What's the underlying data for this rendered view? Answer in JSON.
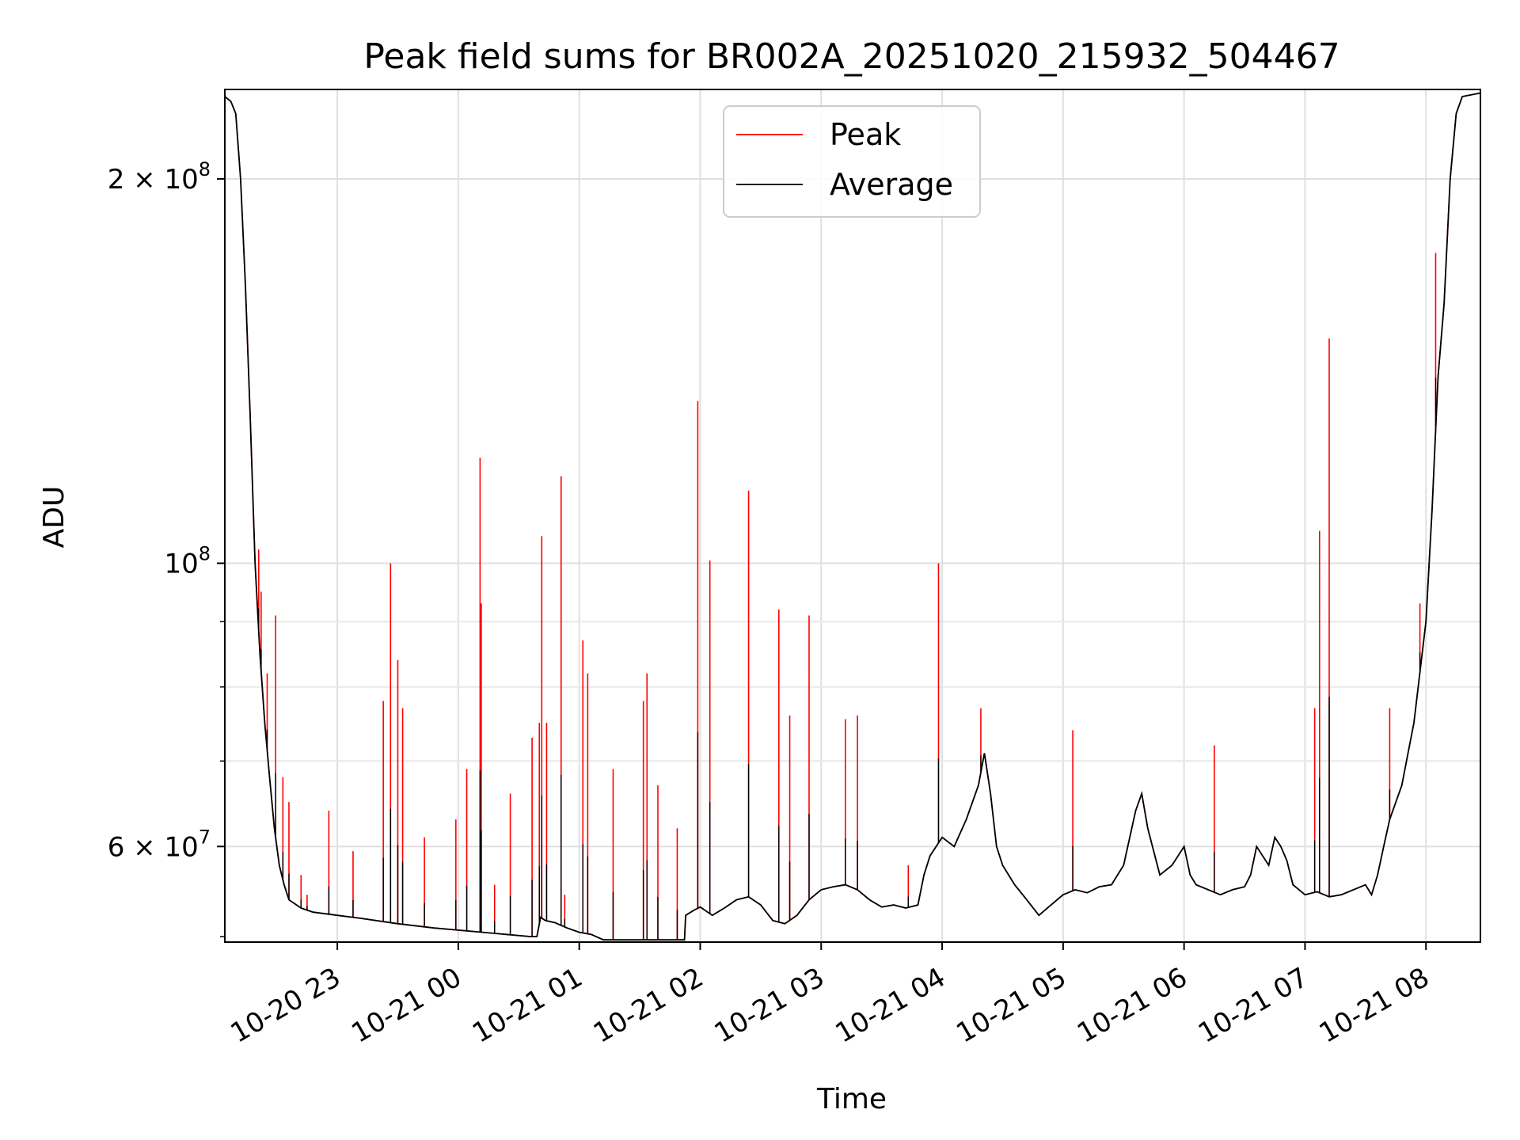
{
  "chart_data": {
    "type": "line",
    "title": "Peak field sums for BR002A_20251020_215932_504467",
    "xlabel": "Time",
    "ylabel": "ADU",
    "yscale": "log",
    "ylim": [
      50500000,
      235000000
    ],
    "xlim_hours": [
      -1.93,
      8.45
    ],
    "x_unit": "hours relative to 2025-10-21 00:00",
    "grid": true,
    "legend_position": "top-center",
    "x_ticks": [
      {
        "value": -1,
        "label": "10-20 23"
      },
      {
        "value": 0,
        "label": "10-21 00"
      },
      {
        "value": 1,
        "label": "10-21 01"
      },
      {
        "value": 2,
        "label": "10-21 02"
      },
      {
        "value": 3,
        "label": "10-21 03"
      },
      {
        "value": 4,
        "label": "10-21 04"
      },
      {
        "value": 5,
        "label": "10-21 05"
      },
      {
        "value": 6,
        "label": "10-21 06"
      },
      {
        "value": 7,
        "label": "10-21 07"
      },
      {
        "value": 8,
        "label": "10-21 08"
      }
    ],
    "y_major_ticks": [
      {
        "value": 60000000,
        "mantissa": "6",
        "exponent": "7"
      },
      {
        "value": 100000000,
        "mantissa": "",
        "exponent": "8"
      },
      {
        "value": 200000000,
        "mantissa": "2",
        "exponent": "8"
      }
    ],
    "y_minor_ticks": [
      70000000,
      80000000,
      90000000
    ],
    "series": [
      {
        "name": "Average",
        "color": "#000000",
        "points": [
          [
            -1.93,
            232000000
          ],
          [
            -1.88,
            230000000
          ],
          [
            -1.84,
            225000000
          ],
          [
            -1.8,
            200000000
          ],
          [
            -1.76,
            165000000
          ],
          [
            -1.72,
            130000000
          ],
          [
            -1.68,
            100000000
          ],
          [
            -1.64,
            85000000
          ],
          [
            -1.6,
            75000000
          ],
          [
            -1.56,
            68000000
          ],
          [
            -1.52,
            62000000
          ],
          [
            -1.48,
            58000000
          ],
          [
            -1.44,
            56000000
          ],
          [
            -1.4,
            54500000
          ],
          [
            -1.3,
            53700000
          ],
          [
            -1.2,
            53300000
          ],
          [
            -1.0,
            53000000
          ],
          [
            -0.8,
            52700000
          ],
          [
            -0.5,
            52200000
          ],
          [
            -0.2,
            51800000
          ],
          [
            0.0,
            51600000
          ],
          [
            0.3,
            51300000
          ],
          [
            0.6,
            51000000
          ],
          [
            0.65,
            51000000
          ],
          [
            0.68,
            52800000
          ],
          [
            0.72,
            52500000
          ],
          [
            0.8,
            52300000
          ],
          [
            0.9,
            51800000
          ],
          [
            1.0,
            51400000
          ],
          [
            1.1,
            51200000
          ],
          [
            1.2,
            50700000
          ],
          [
            1.5,
            50700000
          ],
          [
            1.87,
            50700000
          ],
          [
            1.88,
            53000000
          ],
          [
            1.95,
            53500000
          ],
          [
            2.0,
            53800000
          ],
          [
            2.1,
            53000000
          ],
          [
            2.2,
            53700000
          ],
          [
            2.3,
            54500000
          ],
          [
            2.4,
            54800000
          ],
          [
            2.5,
            54000000
          ],
          [
            2.6,
            52500000
          ],
          [
            2.7,
            52200000
          ],
          [
            2.8,
            53000000
          ],
          [
            2.9,
            54500000
          ],
          [
            3.0,
            55500000
          ],
          [
            3.1,
            55800000
          ],
          [
            3.2,
            56000000
          ],
          [
            3.3,
            55500000
          ],
          [
            3.4,
            54500000
          ],
          [
            3.5,
            53800000
          ],
          [
            3.6,
            54000000
          ],
          [
            3.7,
            53700000
          ],
          [
            3.8,
            54000000
          ],
          [
            3.85,
            57000000
          ],
          [
            3.9,
            59000000
          ],
          [
            4.0,
            61000000
          ],
          [
            4.1,
            60000000
          ],
          [
            4.2,
            63000000
          ],
          [
            4.3,
            67000000
          ],
          [
            4.35,
            71000000
          ],
          [
            4.4,
            66000000
          ],
          [
            4.45,
            60000000
          ],
          [
            4.5,
            58000000
          ],
          [
            4.6,
            56000000
          ],
          [
            4.7,
            54500000
          ],
          [
            4.8,
            53000000
          ],
          [
            4.9,
            54000000
          ],
          [
            5.0,
            55000000
          ],
          [
            5.1,
            55500000
          ],
          [
            5.2,
            55200000
          ],
          [
            5.3,
            55800000
          ],
          [
            5.4,
            56000000
          ],
          [
            5.5,
            58000000
          ],
          [
            5.6,
            64000000
          ],
          [
            5.65,
            66000000
          ],
          [
            5.7,
            62000000
          ],
          [
            5.8,
            57000000
          ],
          [
            5.9,
            58000000
          ],
          [
            6.0,
            60000000
          ],
          [
            6.05,
            57000000
          ],
          [
            6.1,
            56000000
          ],
          [
            6.2,
            55500000
          ],
          [
            6.3,
            55000000
          ],
          [
            6.4,
            55500000
          ],
          [
            6.5,
            55800000
          ],
          [
            6.55,
            57000000
          ],
          [
            6.6,
            60000000
          ],
          [
            6.7,
            58000000
          ],
          [
            6.75,
            61000000
          ],
          [
            6.8,
            60000000
          ],
          [
            6.85,
            58500000
          ],
          [
            6.9,
            56000000
          ],
          [
            7.0,
            55000000
          ],
          [
            7.1,
            55300000
          ],
          [
            7.2,
            54800000
          ],
          [
            7.3,
            55000000
          ],
          [
            7.4,
            55500000
          ],
          [
            7.5,
            56000000
          ],
          [
            7.55,
            55000000
          ],
          [
            7.6,
            57000000
          ],
          [
            7.65,
            60000000
          ],
          [
            7.7,
            63000000
          ],
          [
            7.8,
            67000000
          ],
          [
            7.9,
            75000000
          ],
          [
            8.0,
            90000000
          ],
          [
            8.05,
            110000000
          ],
          [
            8.1,
            140000000
          ],
          [
            8.15,
            160000000
          ],
          [
            8.2,
            200000000
          ],
          [
            8.25,
            225000000
          ],
          [
            8.3,
            232000000
          ],
          [
            8.4,
            233000000
          ],
          [
            8.45,
            233500000
          ]
        ]
      }
    ],
    "peak_spikes": [
      [
        -1.65,
        102500000
      ],
      [
        -1.63,
        95000000
      ],
      [
        -1.58,
        82000000
      ],
      [
        -1.51,
        91000000
      ],
      [
        -1.45,
        68000000
      ],
      [
        -1.4,
        65000000
      ],
      [
        -1.3,
        57000000
      ],
      [
        -1.25,
        55000000
      ],
      [
        -1.07,
        64000000
      ],
      [
        -0.87,
        59500000
      ],
      [
        -0.62,
        78000000
      ],
      [
        -0.56,
        100000000
      ],
      [
        -0.5,
        84000000
      ],
      [
        -0.46,
        77000000
      ],
      [
        -0.28,
        61000000
      ],
      [
        -0.02,
        63000000
      ],
      [
        0.07,
        69000000
      ],
      [
        0.18,
        121000000
      ],
      [
        0.19,
        93000000
      ],
      [
        0.3,
        56000000
      ],
      [
        0.43,
        66000000
      ],
      [
        0.61,
        73000000
      ],
      [
        0.67,
        75000000
      ],
      [
        0.69,
        105000000
      ],
      [
        0.73,
        75000000
      ],
      [
        0.85,
        117000000
      ],
      [
        0.88,
        55000000
      ],
      [
        1.03,
        87000000
      ],
      [
        1.07,
        82000000
      ],
      [
        1.28,
        69000000
      ],
      [
        1.53,
        78000000
      ],
      [
        1.56,
        82000000
      ],
      [
        1.65,
        67000000
      ],
      [
        1.81,
        62000000
      ],
      [
        1.98,
        134000000
      ],
      [
        2.08,
        100500000
      ],
      [
        2.4,
        114000000
      ],
      [
        2.65,
        92000000
      ],
      [
        2.74,
        76000000
      ],
      [
        2.9,
        91000000
      ],
      [
        3.2,
        75500000
      ],
      [
        3.3,
        76000000
      ],
      [
        3.72,
        58000000
      ],
      [
        3.97,
        100000000
      ],
      [
        4.32,
        77000000
      ],
      [
        5.08,
        74000000
      ],
      [
        6.25,
        72000000
      ],
      [
        7.08,
        77000000
      ],
      [
        7.12,
        106000000
      ],
      [
        7.2,
        150000000
      ],
      [
        7.7,
        77000000
      ],
      [
        7.95,
        93000000
      ],
      [
        8.08,
        175000000
      ]
    ]
  },
  "legend": {
    "items": [
      {
        "label": "Peak",
        "color": "#ff0000"
      },
      {
        "label": "Average",
        "color": "#000000"
      }
    ]
  }
}
